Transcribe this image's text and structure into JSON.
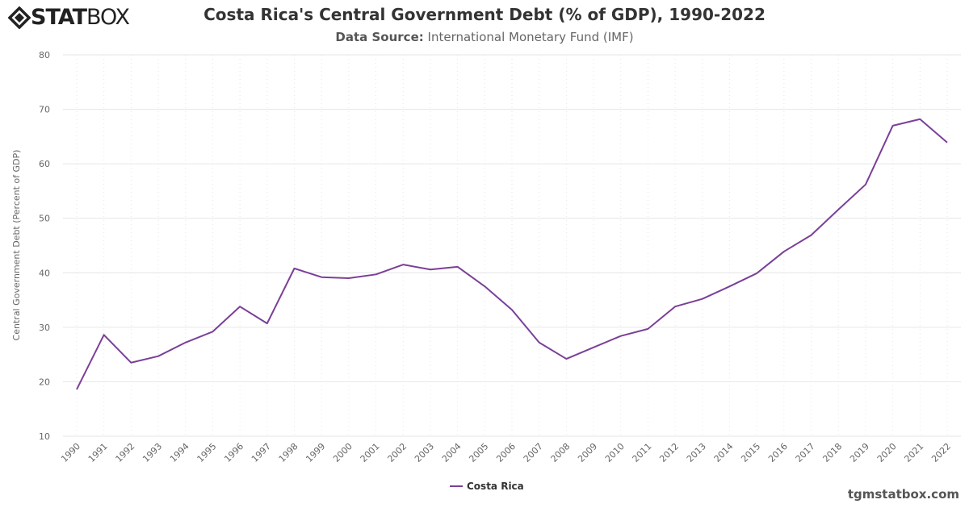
{
  "logo": {
    "text_bold": "STAT",
    "text_light": "BOX"
  },
  "header": {
    "title": "Costa Rica's Central Government Debt (% of GDP), 1990-2022",
    "subtitle_label": "Data Source:",
    "subtitle_value": "International Monetary Fund (IMF)"
  },
  "credit": "tgmstatbox.com",
  "colors": {
    "line": "#7b3f98"
  },
  "chart_data": {
    "type": "line",
    "title": "Costa Rica's Central Government Debt (% of GDP), 1990-2022",
    "ylabel": "Central Government Debt (Percent of GDP)",
    "xlabel": "",
    "ylim": [
      10,
      80
    ],
    "yticks": [
      10,
      20,
      30,
      40,
      50,
      60,
      70,
      80
    ],
    "grid": true,
    "legend": "bottom-center",
    "x": [
      "1990",
      "1991",
      "1992",
      "1993",
      "1994",
      "1995",
      "1996",
      "1997",
      "1998",
      "1999",
      "2000",
      "2001",
      "2002",
      "2003",
      "2004",
      "2005",
      "2006",
      "2007",
      "2008",
      "2009",
      "2010",
      "2011",
      "2012",
      "2013",
      "2014",
      "2015",
      "2016",
      "2017",
      "2018",
      "2019",
      "2020",
      "2021",
      "2022"
    ],
    "series": [
      {
        "name": "Costa Rica",
        "values": [
          18.6,
          28.6,
          23.5,
          24.7,
          27.2,
          29.2,
          33.8,
          30.7,
          40.8,
          39.2,
          39.0,
          39.7,
          41.5,
          40.6,
          41.1,
          37.5,
          33.2,
          27.2,
          24.2,
          26.3,
          28.4,
          29.7,
          33.8,
          35.2,
          37.5,
          39.9,
          43.9,
          46.9,
          51.6,
          56.2,
          67.0,
          68.2,
          63.9
        ]
      }
    ]
  }
}
